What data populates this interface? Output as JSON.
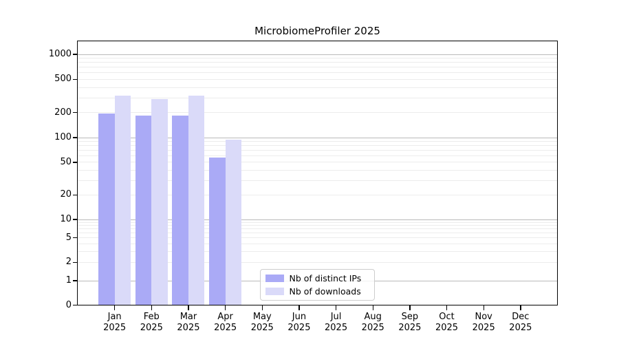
{
  "chart_data": {
    "type": "bar",
    "title": "MicrobiomeProfiler 2025",
    "categories": [
      "Jan 2025",
      "Feb 2025",
      "Mar 2025",
      "Apr 2025",
      "May 2025",
      "Jun 2025",
      "Jul 2025",
      "Aug 2025",
      "Sep 2025",
      "Oct 2025",
      "Nov 2025",
      "Dec 2025"
    ],
    "series": [
      {
        "name": "Nb of distinct IPs",
        "color": "#aaaaf6",
        "values": [
          195,
          185,
          184,
          57,
          null,
          null,
          null,
          null,
          null,
          null,
          null,
          null
        ]
      },
      {
        "name": "Nb of downloads",
        "color": "#dadaf9",
        "values": [
          322,
          288,
          320,
          95,
          null,
          null,
          null,
          null,
          null,
          null,
          null,
          null
        ]
      }
    ],
    "xlabel": "",
    "ylabel": "",
    "yscale": "log (custom, ticks 0-1000)",
    "yticks": [
      0,
      1,
      2,
      5,
      10,
      20,
      50,
      100,
      200,
      500,
      1000
    ],
    "major_gridlines": [
      1,
      10,
      100,
      1000
    ],
    "ylim": [
      0,
      1450
    ],
    "grid": true,
    "legend_position": "inside bottom-center"
  },
  "colors": {
    "distinct_ips": "#aaaaf6",
    "downloads": "#dadaf9",
    "grid_minor": "#ececec",
    "grid_major": "#b9b9b9",
    "axis": "#000000",
    "legend_border": "#cccccc"
  }
}
